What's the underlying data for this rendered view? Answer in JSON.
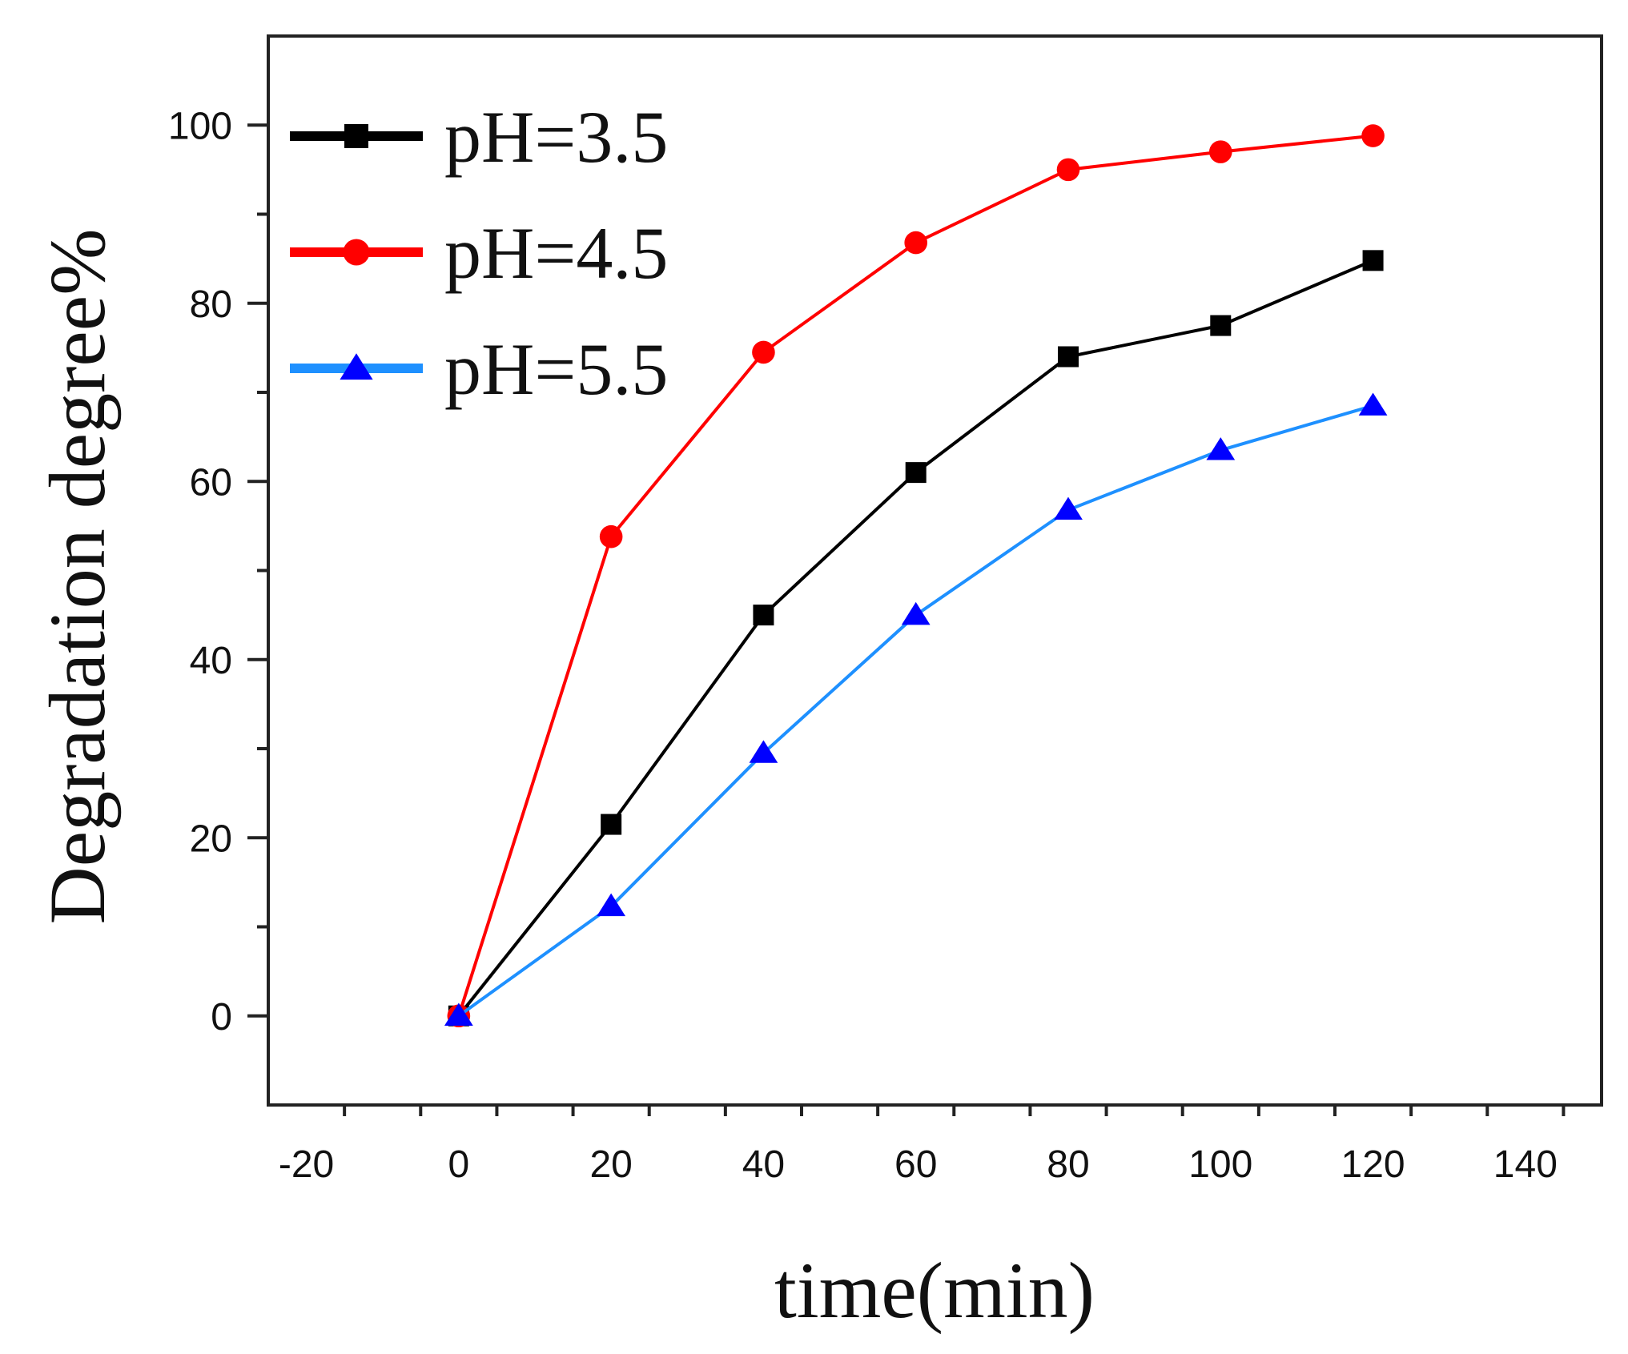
{
  "chart_data": {
    "type": "line",
    "title": "",
    "xlabel": "time(min)",
    "ylabel": "Degradation degree%",
    "xlim": [
      -25,
      150
    ],
    "ylim": [
      -10,
      110
    ],
    "xticks": [
      -20,
      0,
      20,
      40,
      60,
      80,
      100,
      120,
      140
    ],
    "yticks": [
      0,
      20,
      40,
      60,
      80,
      100
    ],
    "x_minor_step": 10,
    "y_minor_step": 10,
    "grid": false,
    "legend_position": "top-left",
    "x": [
      0,
      20,
      40,
      60,
      80,
      100,
      120
    ],
    "series": [
      {
        "name": "pH=3.5",
        "color": "#000000",
        "marker": "square",
        "values": [
          0,
          21.5,
          45,
          61,
          74,
          77.5,
          84.8
        ]
      },
      {
        "name": "pH=4.5",
        "color": "#ff0000",
        "marker": "circle",
        "values": [
          0,
          53.8,
          74.5,
          86.8,
          95,
          97,
          98.8
        ]
      },
      {
        "name": "pH=5.5",
        "color": "#0000ff",
        "line_color": "#1e90ff",
        "marker": "triangle",
        "values": [
          0,
          12.3,
          29.5,
          45,
          56.8,
          63.5,
          68.5
        ]
      }
    ]
  }
}
